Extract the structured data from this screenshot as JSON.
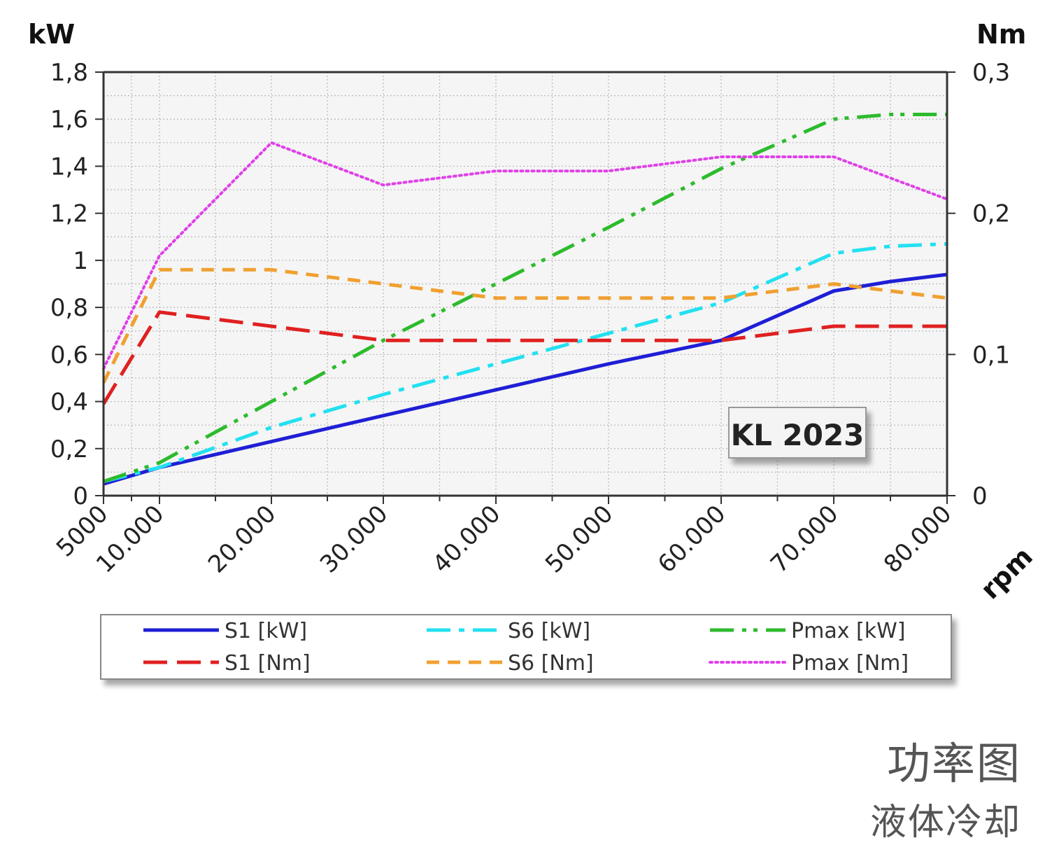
{
  "chart_data": {
    "type": "line",
    "x_unit": "rpm",
    "y_left_unit": "kW",
    "y_right_unit": "Nm",
    "x_tick_labels": [
      "5000",
      "10.000",
      "20.000",
      "30.000",
      "40.000",
      "50.000",
      "60.000",
      "70.000",
      "80.000"
    ],
    "x_ticks": [
      5000,
      10000,
      20000,
      30000,
      40000,
      50000,
      60000,
      70000,
      80000
    ],
    "xlim": [
      5000,
      80000
    ],
    "y_left_ticks": [
      0,
      0.2,
      0.4,
      0.6,
      0.8,
      1,
      1.2,
      1.4,
      1.6,
      1.8
    ],
    "y_left_tick_labels": [
      "0",
      "0,2",
      "0,4",
      "0,6",
      "0,8",
      "1",
      "1,2",
      "1,4",
      "1,6",
      "1,8"
    ],
    "y_left_lim": [
      0,
      1.8
    ],
    "y_right_ticks": [
      0,
      0.1,
      0.2,
      0.3
    ],
    "y_right_tick_labels": [
      "0",
      "0,1",
      "0,2",
      "0,3"
    ],
    "y_right_lim": [
      0,
      0.3
    ],
    "grid": true,
    "legend_position": "bottom",
    "badge": "KL 2023",
    "series": [
      {
        "name": "S1 [kW]",
        "axis": "left",
        "color": "#1f1fd6",
        "style": "solid",
        "x": [
          5000,
          10000,
          20000,
          30000,
          40000,
          50000,
          60000,
          70000,
          75000,
          80000
        ],
        "y": [
          0.05,
          0.12,
          0.23,
          0.34,
          0.45,
          0.56,
          0.66,
          0.87,
          0.91,
          0.94
        ]
      },
      {
        "name": "S6 [kW]",
        "axis": "left",
        "color": "#22e0f0",
        "style": "dashdot",
        "x": [
          5000,
          10000,
          20000,
          30000,
          40000,
          50000,
          60000,
          70000,
          75000,
          80000
        ],
        "y": [
          0.06,
          0.12,
          0.29,
          0.43,
          0.56,
          0.69,
          0.82,
          1.03,
          1.06,
          1.07
        ]
      },
      {
        "name": "Pmax [kW]",
        "axis": "left",
        "color": "#2dbb2d",
        "style": "dashdotdot",
        "x": [
          5000,
          10000,
          20000,
          30000,
          40000,
          50000,
          60000,
          70000,
          75000,
          80000
        ],
        "y": [
          0.06,
          0.14,
          0.4,
          0.66,
          0.9,
          1.14,
          1.39,
          1.6,
          1.62,
          1.62
        ]
      },
      {
        "name": "S1 [Nm]",
        "axis": "right",
        "color": "#e02020",
        "style": "longdash",
        "x": [
          5000,
          10000,
          20000,
          30000,
          40000,
          50000,
          60000,
          70000,
          80000
        ],
        "y": [
          0.065,
          0.13,
          0.12,
          0.11,
          0.11,
          0.11,
          0.11,
          0.12,
          0.12
        ]
      },
      {
        "name": "S6 [Nm]",
        "axis": "right",
        "color": "#f0a030",
        "style": "dash",
        "x": [
          5000,
          10000,
          20000,
          30000,
          40000,
          50000,
          60000,
          70000,
          80000
        ],
        "y": [
          0.08,
          0.16,
          0.16,
          0.15,
          0.14,
          0.14,
          0.14,
          0.15,
          0.14
        ]
      },
      {
        "name": "Pmax [Nm]",
        "axis": "right",
        "color": "#e040e8",
        "style": "dotted",
        "x": [
          5000,
          10000,
          20000,
          30000,
          40000,
          50000,
          60000,
          70000,
          80000
        ],
        "y": [
          0.09,
          0.17,
          0.25,
          0.22,
          0.23,
          0.23,
          0.24,
          0.24,
          0.21
        ]
      }
    ]
  },
  "caption": {
    "title": "功率图",
    "subtitle": "液体冷却"
  }
}
